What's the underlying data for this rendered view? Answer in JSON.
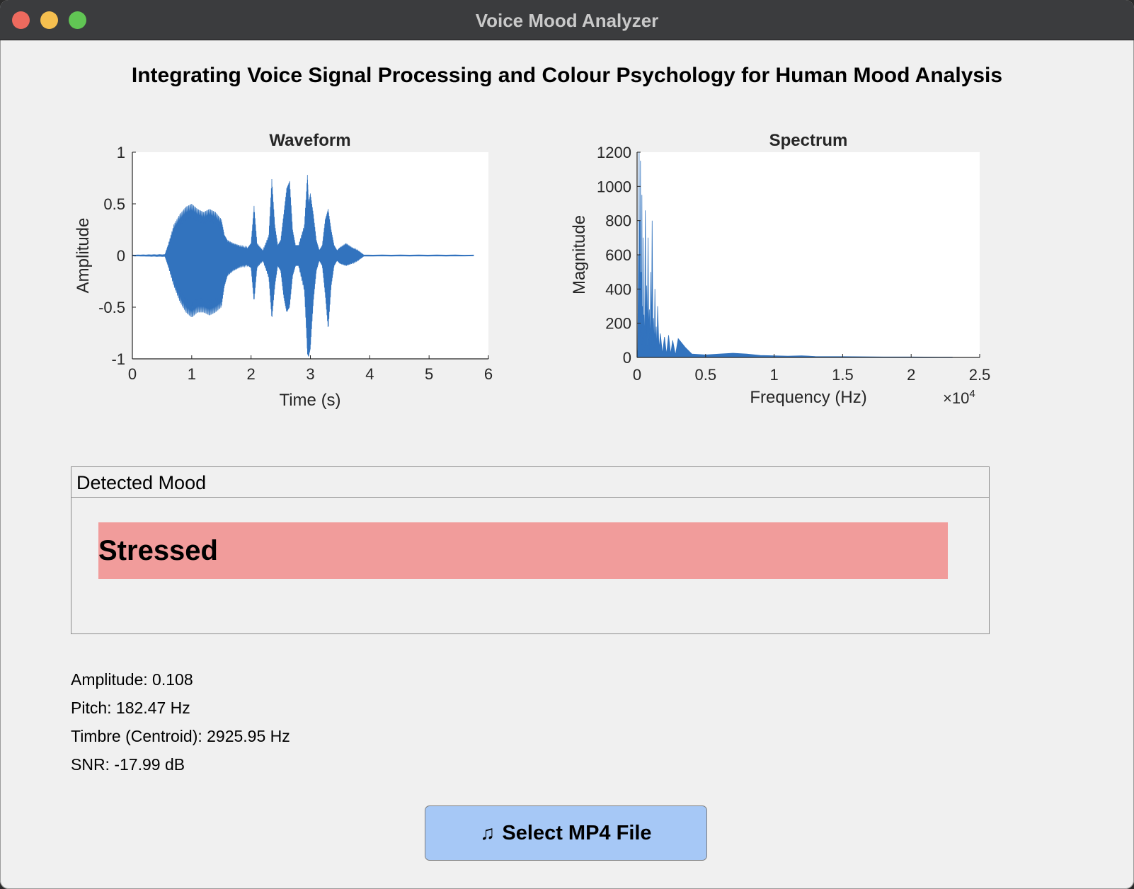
{
  "window": {
    "title": "Voice Mood Analyzer"
  },
  "heading": "Integrating Voice Signal Processing and Colour Psychology for Human Mood Analysis",
  "chart_data": [
    {
      "type": "line",
      "title": "Waveform",
      "xlabel": "Time (s)",
      "ylabel": "Amplitude",
      "xlim": [
        0,
        6
      ],
      "ylim": [
        -1,
        1
      ],
      "xticks": [
        0,
        1,
        2,
        3,
        4,
        5,
        6
      ],
      "yticks": [
        -1,
        -0.5,
        0,
        0.5,
        1
      ],
      "x_tick_labels": [
        "0",
        "1",
        "2",
        "3",
        "4",
        "5",
        "6"
      ],
      "y_tick_labels": [
        "-1",
        "-0.5",
        "0",
        "0.5",
        "1"
      ],
      "series": [
        {
          "color": "#3273be",
          "envelope": {
            "x": [
              0,
              0.55,
              0.6,
              0.7,
              0.8,
              0.9,
              1.0,
              1.1,
              1.2,
              1.3,
              1.4,
              1.5,
              1.55,
              1.6,
              1.7,
              1.8,
              1.95,
              2.0,
              2.05,
              2.1,
              2.2,
              2.3,
              2.35,
              2.4,
              2.45,
              2.5,
              2.55,
              2.6,
              2.65,
              2.7,
              2.75,
              2.8,
              2.9,
              2.95,
              2.97,
              3.0,
              3.05,
              3.1,
              3.15,
              3.2,
              3.25,
              3.3,
              3.35,
              3.4,
              3.45,
              3.5,
              3.6,
              3.7,
              3.8,
              3.9,
              5.75
            ],
            "upper": [
              0.005,
              0.01,
              0.1,
              0.3,
              0.4,
              0.47,
              0.5,
              0.45,
              0.42,
              0.45,
              0.42,
              0.35,
              0.2,
              0.15,
              0.12,
              0.1,
              0.08,
              0.12,
              0.48,
              0.12,
              0.05,
              0.2,
              0.74,
              0.3,
              0.1,
              0.15,
              0.4,
              0.65,
              0.72,
              0.25,
              0.1,
              0.1,
              0.3,
              0.78,
              0.5,
              0.6,
              0.4,
              0.15,
              0.05,
              0.1,
              0.35,
              0.45,
              0.25,
              0.1,
              0.05,
              0.08,
              0.12,
              0.08,
              0.05,
              0.006,
              0.005
            ],
            "lower": [
              -0.005,
              -0.01,
              -0.1,
              -0.3,
              -0.45,
              -0.55,
              -0.6,
              -0.55,
              -0.55,
              -0.58,
              -0.55,
              -0.5,
              -0.3,
              -0.2,
              -0.15,
              -0.12,
              -0.1,
              -0.12,
              -0.45,
              -0.12,
              -0.05,
              -0.22,
              -0.62,
              -0.3,
              -0.1,
              -0.15,
              -0.4,
              -0.55,
              -0.5,
              -0.2,
              -0.1,
              -0.1,
              -0.35,
              -0.95,
              -0.98,
              -0.9,
              -0.45,
              -0.15,
              -0.05,
              -0.1,
              -0.38,
              -0.72,
              -0.3,
              -0.1,
              -0.05,
              -0.08,
              -0.1,
              -0.08,
              -0.05,
              -0.006,
              -0.005
            ]
          }
        }
      ]
    },
    {
      "type": "area",
      "title": "Spectrum",
      "xlabel": "Frequency (Hz)",
      "ylabel": "Magnitude",
      "x_multiplier": "×10",
      "x_multiplier_exp": "4",
      "xlim": [
        0,
        25000
      ],
      "ylim": [
        0,
        1200
      ],
      "xticks": [
        0,
        5000,
        10000,
        15000,
        20000,
        25000
      ],
      "yticks": [
        0,
        200,
        400,
        600,
        800,
        1000,
        1200
      ],
      "x_tick_labels": [
        "0",
        "0.5",
        "1",
        "1.5",
        "2",
        "2.5"
      ],
      "y_tick_labels": [
        "0",
        "200",
        "400",
        "600",
        "800",
        "1000",
        "1200"
      ],
      "series": [
        {
          "color": "#3273be",
          "x": [
            0,
            100,
            150,
            200,
            250,
            300,
            350,
            400,
            450,
            500,
            600,
            700,
            800,
            900,
            1000,
            1100,
            1200,
            1300,
            1400,
            1500,
            1700,
            2000,
            2300,
            2600,
            3000,
            3500,
            4000,
            5000,
            6000,
            7000,
            8000,
            9000,
            10000,
            11000,
            12000,
            13000,
            15000,
            18000,
            20000,
            22000,
            23000
          ],
          "y": [
            50,
            600,
            1200,
            800,
            1150,
            500,
            950,
            300,
            700,
            250,
            860,
            420,
            700,
            280,
            500,
            800,
            230,
            400,
            180,
            300,
            140,
            120,
            130,
            100,
            110,
            60,
            20,
            15,
            20,
            25,
            20,
            12,
            10,
            8,
            10,
            6,
            5,
            3,
            3,
            2,
            2
          ]
        }
      ]
    }
  ],
  "detected_mood": {
    "title": "Detected Mood",
    "label": "Stressed",
    "color": "#f19c9b"
  },
  "metrics": {
    "amplitude": "Amplitude: 0.108",
    "pitch": "Pitch: 182.47 Hz",
    "timbre": "Timbre (Centroid): 2925.95 Hz",
    "snr": "SNR: -17.99 dB"
  },
  "select_button": {
    "icon": "music-note-icon",
    "label": "Select MP4 File"
  }
}
